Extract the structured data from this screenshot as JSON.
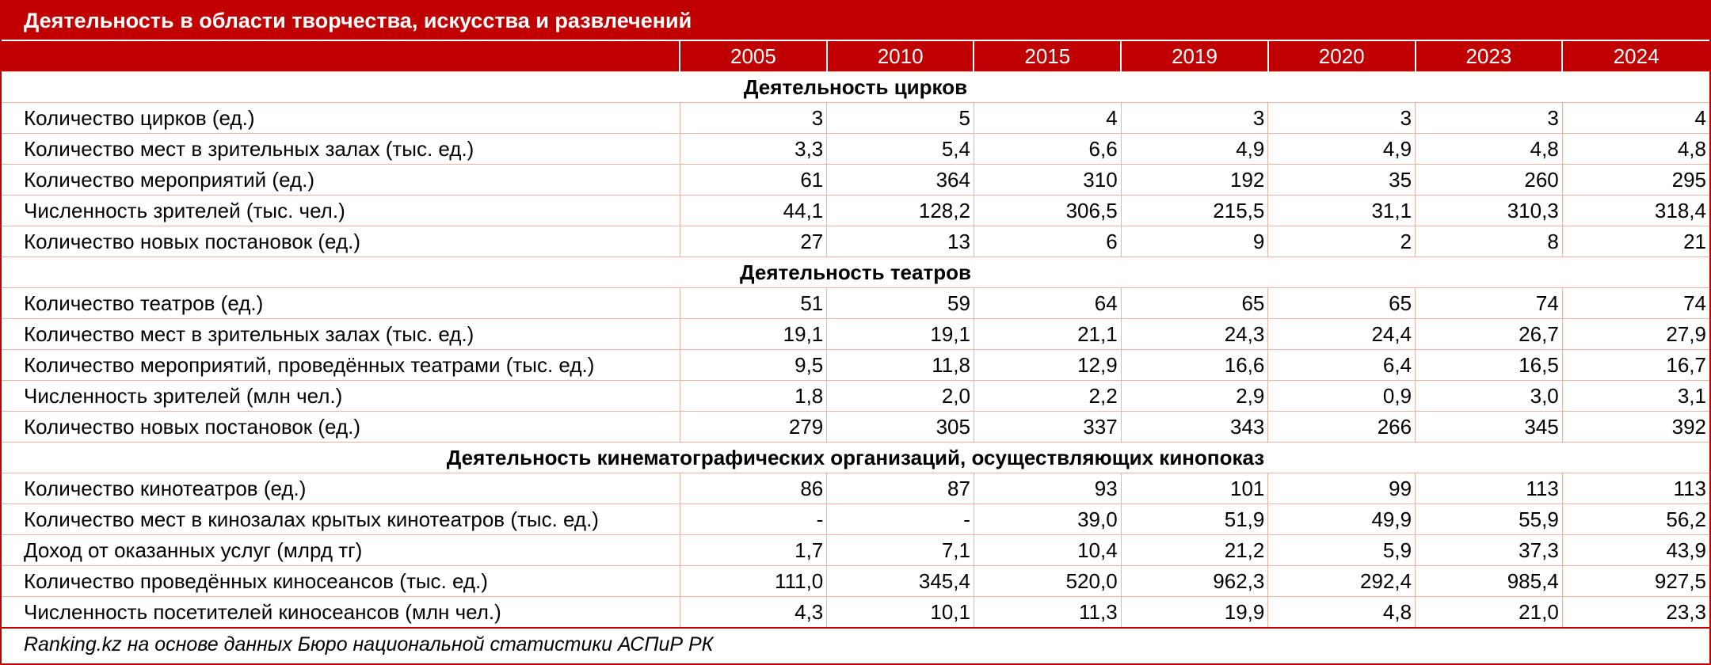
{
  "title": "Деятельность в области творчества, искусства и развлечений",
  "years": [
    "2005",
    "2010",
    "2015",
    "2019",
    "2020",
    "2023",
    "2024"
  ],
  "sections": [
    {
      "heading": "Деятельность цирков",
      "rows": [
        {
          "label": "Количество цирков (ед.)",
          "values": [
            "3",
            "5",
            "4",
            "3",
            "3",
            "3",
            "4"
          ]
        },
        {
          "label": "Количество мест в зрительных залах (тыс. ед.)",
          "values": [
            "3,3",
            "5,4",
            "6,6",
            "4,9",
            "4,9",
            "4,8",
            "4,8"
          ]
        },
        {
          "label": "Количество мероприятий (ед.)",
          "values": [
            "61",
            "364",
            "310",
            "192",
            "35",
            "260",
            "295"
          ]
        },
        {
          "label": "Численность зрителей (тыс. чел.)",
          "values": [
            "44,1",
            "128,2",
            "306,5",
            "215,5",
            "31,1",
            "310,3",
            "318,4"
          ]
        },
        {
          "label": "Количество новых постановок (ед.)",
          "values": [
            "27",
            "13",
            "6",
            "9",
            "2",
            "8",
            "21"
          ]
        }
      ]
    },
    {
      "heading": "Деятельность театров",
      "rows": [
        {
          "label": "Количество театров (ед.)",
          "values": [
            "51",
            "59",
            "64",
            "65",
            "65",
            "74",
            "74"
          ]
        },
        {
          "label": "Количество мест в зрительных залах (тыс. ед.)",
          "values": [
            "19,1",
            "19,1",
            "21,1",
            "24,3",
            "24,4",
            "26,7",
            "27,9"
          ]
        },
        {
          "label": "Количество мероприятий, проведённых театрами (тыс. ед.)",
          "values": [
            "9,5",
            "11,8",
            "12,9",
            "16,6",
            "6,4",
            "16,5",
            "16,7"
          ]
        },
        {
          "label": "Численность зрителей (млн чел.)",
          "values": [
            "1,8",
            "2,0",
            "2,2",
            "2,9",
            "0,9",
            "3,0",
            "3,1"
          ]
        },
        {
          "label": "Количество новых постановок (ед.)",
          "values": [
            "279",
            "305",
            "337",
            "343",
            "266",
            "345",
            "392"
          ]
        }
      ]
    },
    {
      "heading": "Деятельность кинематографических организаций, осуществляющих кинопоказ",
      "rows": [
        {
          "label": "Количество кинотеатров (ед.)",
          "values": [
            "86",
            "87",
            "93",
            "101",
            "99",
            "113",
            "113"
          ]
        },
        {
          "label": "Количество мест в кинозалах крытых кинотеатров (тыс. ед.)",
          "values": [
            "-",
            "-",
            "39,0",
            "51,9",
            "49,9",
            "55,9",
            "56,2"
          ]
        },
        {
          "label": "Доход от оказанных услуг (млрд тг)",
          "values": [
            "1,7",
            "7,1",
            "10,4",
            "21,2",
            "5,9",
            "37,3",
            "43,9"
          ]
        },
        {
          "label": "Количество проведённых киносеансов (тыс. ед.)",
          "values": [
            "111,0",
            "345,4",
            "520,0",
            "962,3",
            "292,4",
            "985,4",
            "927,5"
          ]
        },
        {
          "label": "Численность посетителей киносеансов (млн чел.)",
          "values": [
            "4,3",
            "10,1",
            "11,3",
            "19,9",
            "4,8",
            "21,0",
            "23,3"
          ]
        }
      ]
    }
  ],
  "source": "Ranking.kz на основе данных Бюро национальной статистики АСПиР РК",
  "colors": {
    "accent": "#c00000",
    "grid": "#e8b4a8"
  }
}
